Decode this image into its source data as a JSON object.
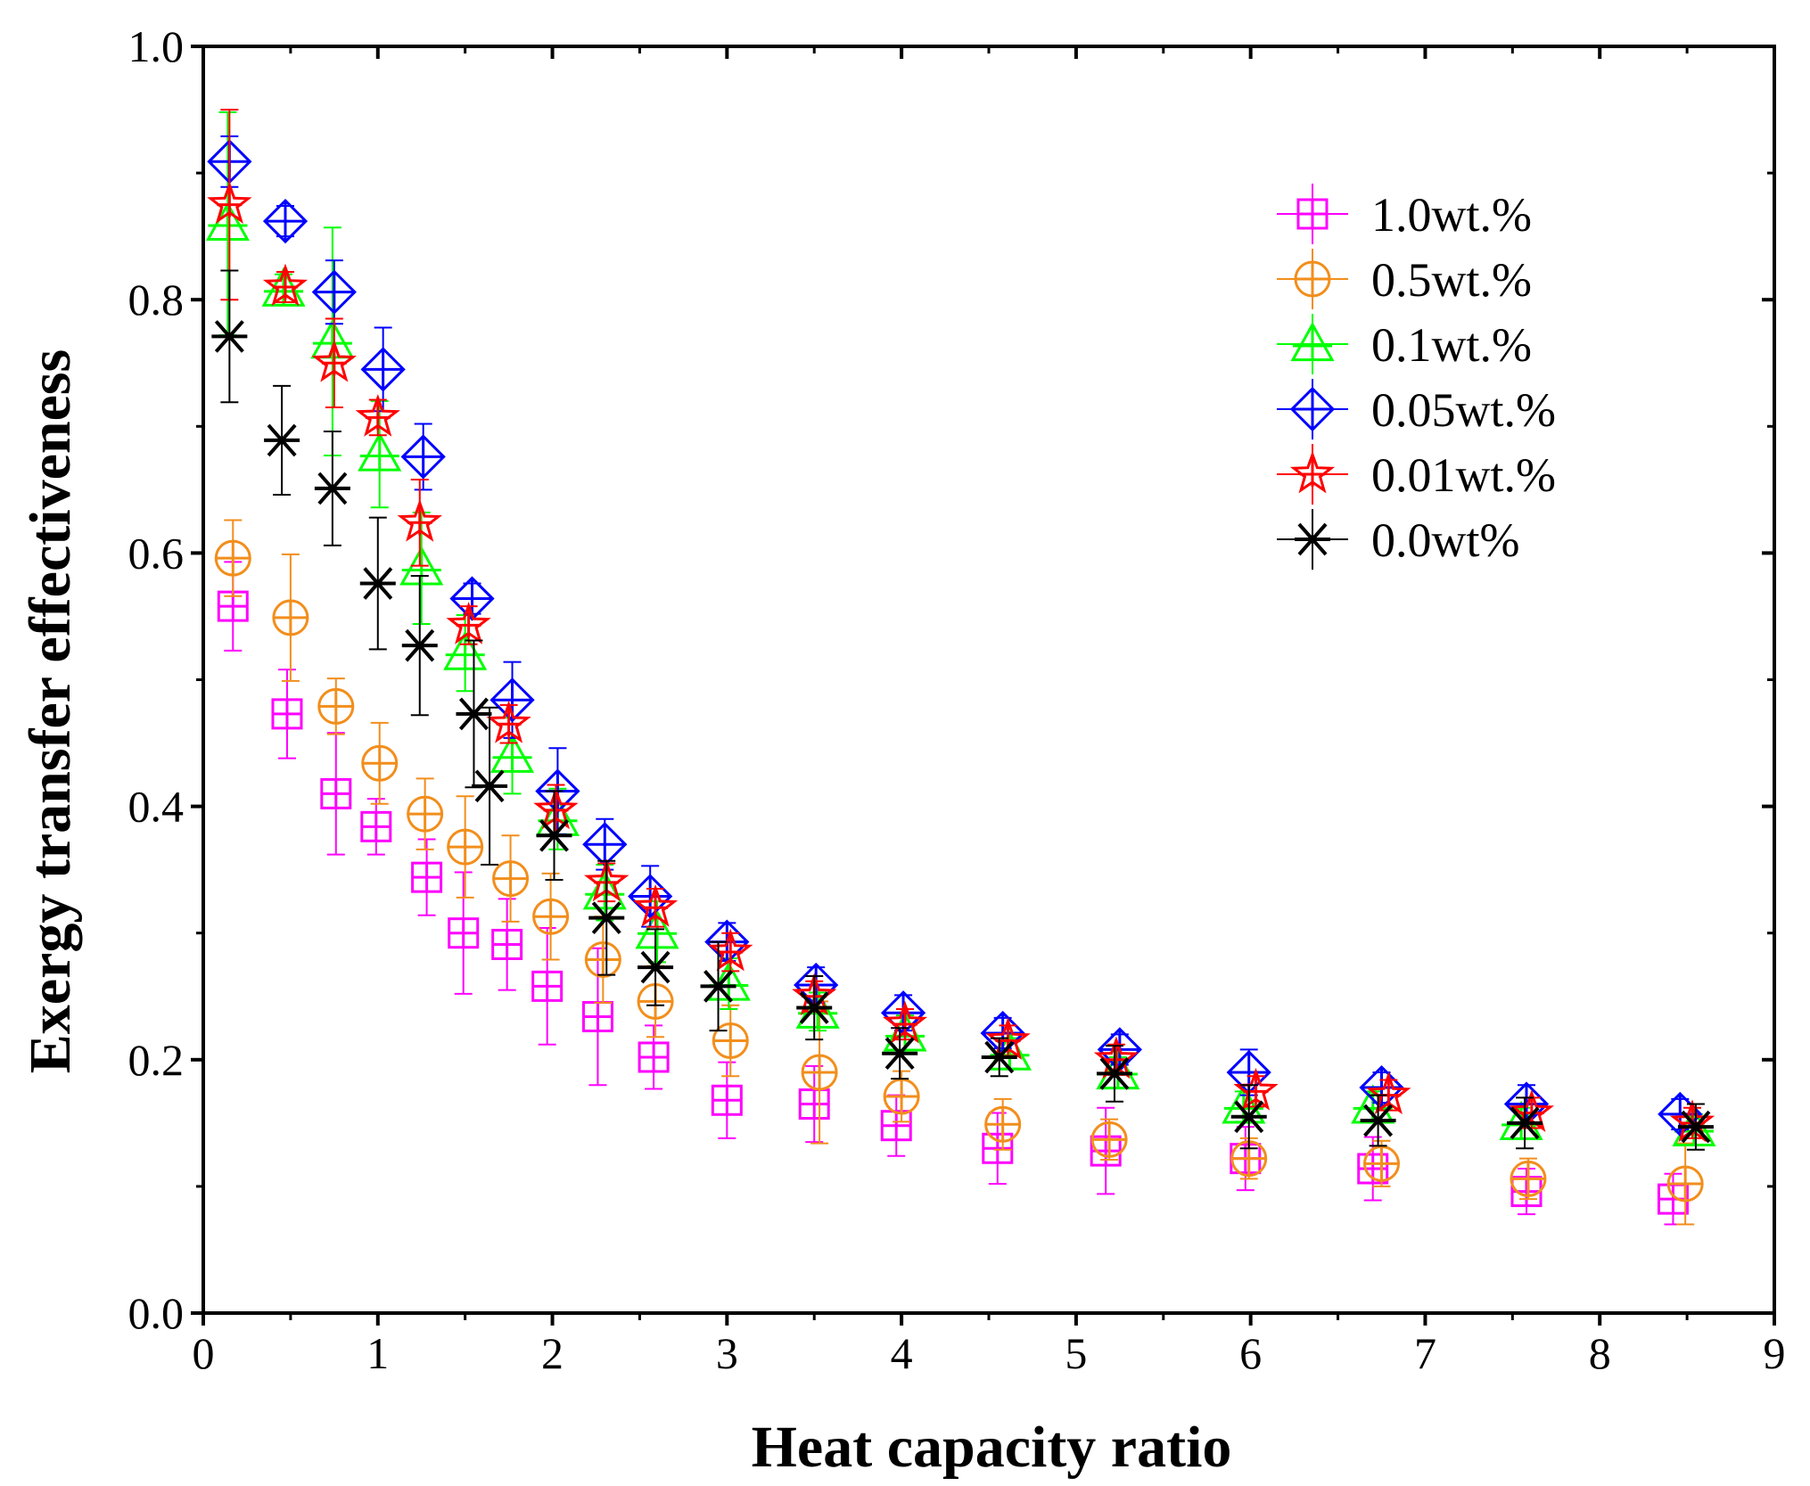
{
  "chart_data": {
    "type": "scatter",
    "title": "",
    "xlabel": "Heat capacity ratio",
    "ylabel": "Exergy transfer effectiveness",
    "xlim": [
      0,
      9
    ],
    "ylim": [
      0.0,
      1.0
    ],
    "xticks": [
      "0",
      "1",
      "2",
      "3",
      "4",
      "5",
      "6",
      "7",
      "8",
      "9"
    ],
    "yticks": [
      "0.0",
      "0.2",
      "0.4",
      "0.6",
      "0.8",
      "1.0"
    ],
    "grid": false,
    "legend_position": "top-right",
    "error_bars": true,
    "series": [
      {
        "name": "1.0wt.%",
        "marker": "square-plus",
        "color": "#ff00ff",
        "x": [
          0.17,
          0.48,
          0.76,
          0.99,
          1.28,
          1.49,
          1.74,
          1.97,
          2.26,
          2.58,
          3.0,
          3.5,
          3.97,
          4.55,
          5.17,
          5.97,
          6.7,
          7.58,
          8.42
        ],
        "y": [
          0.558,
          0.473,
          0.41,
          0.384,
          0.344,
          0.3,
          0.291,
          0.258,
          0.234,
          0.202,
          0.168,
          0.165,
          0.148,
          0.13,
          0.128,
          0.122,
          0.114,
          0.096,
          0.09
        ],
        "err": [
          0.035,
          0.035,
          0.048,
          0.022,
          0.03,
          0.048,
          0.036,
          0.046,
          0.054,
          0.025,
          0.03,
          0.03,
          0.024,
          0.028,
          0.034,
          0.025,
          0.025,
          0.018,
          0.02
        ]
      },
      {
        "name": "0.5wt.%",
        "marker": "circle-plus",
        "color": "#f28e1c",
        "x": [
          0.17,
          0.5,
          0.76,
          1.01,
          1.27,
          1.5,
          1.76,
          1.99,
          2.29,
          2.59,
          3.02,
          3.53,
          4.0,
          4.58,
          5.19,
          5.99,
          6.75,
          7.59,
          8.49
        ],
        "y": [
          0.596,
          0.549,
          0.479,
          0.434,
          0.394,
          0.368,
          0.343,
          0.313,
          0.279,
          0.246,
          0.215,
          0.19,
          0.171,
          0.149,
          0.137,
          0.122,
          0.118,
          0.106,
          0.102
        ],
        "err": [
          0.03,
          0.05,
          0.022,
          0.032,
          0.028,
          0.04,
          0.034,
          0.034,
          0.034,
          0.028,
          0.028,
          0.056,
          0.02,
          0.02,
          0.016,
          0.016,
          0.018,
          0.016,
          0.032
        ]
      },
      {
        "name": "0.1wt.%",
        "marker": "triangle-plus",
        "color": "#00ff00",
        "x": [
          0.14,
          0.46,
          0.74,
          1.01,
          1.25,
          1.5,
          1.77,
          2.03,
          2.3,
          2.6,
          3.01,
          3.52,
          4.02,
          4.62,
          5.24,
          5.96,
          6.7,
          7.55,
          8.54
        ],
        "y": [
          0.86,
          0.808,
          0.767,
          0.678,
          0.588,
          0.521,
          0.44,
          0.39,
          0.332,
          0.301,
          0.26,
          0.238,
          0.22,
          0.205,
          0.19,
          0.163,
          0.163,
          0.15,
          0.145
        ],
        "err": [
          0.088,
          0.012,
          0.09,
          0.042,
          0.044,
          0.03,
          0.03,
          0.024,
          0.022,
          0.024,
          0.02,
          0.015,
          0.015,
          0.012,
          0.012,
          0.012,
          0.012,
          0.012,
          0.012
        ]
      },
      {
        "name": "0.05wt.%",
        "marker": "diamond-plus",
        "color": "#0000ff",
        "x": [
          0.15,
          0.47,
          0.75,
          1.03,
          1.26,
          1.54,
          1.77,
          2.03,
          2.3,
          2.56,
          3.0,
          3.51,
          4.01,
          4.58,
          5.25,
          5.99,
          6.75,
          7.58,
          8.46
        ],
        "y": [
          0.909,
          0.862,
          0.806,
          0.745,
          0.676,
          0.564,
          0.484,
          0.412,
          0.37,
          0.329,
          0.293,
          0.259,
          0.237,
          0.221,
          0.208,
          0.19,
          0.178,
          0.165,
          0.157
        ],
        "err": [
          0.02,
          0.012,
          0.025,
          0.033,
          0.026,
          0.012,
          0.03,
          0.034,
          0.02,
          0.024,
          0.015,
          0.014,
          0.014,
          0.012,
          0.012,
          0.018,
          0.012,
          0.015,
          0.012
        ]
      },
      {
        "name": "0.01wt.%",
        "marker": "star",
        "color": "#ff0000",
        "x": [
          0.15,
          0.47,
          0.75,
          1.0,
          1.24,
          1.52,
          1.75,
          2.02,
          2.31,
          2.59,
          3.02,
          3.5,
          4.02,
          4.61,
          5.23,
          6.03,
          6.79,
          7.61,
          8.53
        ],
        "y": [
          0.875,
          0.81,
          0.75,
          0.707,
          0.624,
          0.543,
          0.465,
          0.397,
          0.34,
          0.32,
          0.285,
          0.25,
          0.228,
          0.215,
          0.2,
          0.175,
          0.172,
          0.158,
          0.15
        ],
        "err": [
          0.075,
          0.012,
          0.035,
          0.014,
          0.034,
          0.015,
          0.015,
          0.02,
          0.015,
          0.015,
          0.015,
          0.012,
          0.012,
          0.012,
          0.012,
          0.012,
          0.012,
          0.012,
          0.012
        ]
      },
      {
        "name": "0.0wt%",
        "marker": "asterisk",
        "color": "#000000",
        "x": [
          0.15,
          0.45,
          0.74,
          1.0,
          1.24,
          1.55,
          1.64,
          2.01,
          2.31,
          2.59,
          2.95,
          3.5,
          3.99,
          4.56,
          5.22,
          5.99,
          6.73,
          7.57,
          8.55
        ],
        "y": [
          0.771,
          0.689,
          0.651,
          0.576,
          0.527,
          0.473,
          0.416,
          0.377,
          0.312,
          0.273,
          0.258,
          0.241,
          0.205,
          0.202,
          0.189,
          0.155,
          0.152,
          0.15,
          0.147
        ],
        "err": [
          0.052,
          0.043,
          0.045,
          0.052,
          0.055,
          0.058,
          0.062,
          0.035,
          0.045,
          0.03,
          0.035,
          0.025,
          0.02,
          0.015,
          0.022,
          0.025,
          0.02,
          0.02,
          0.018
        ]
      }
    ]
  }
}
